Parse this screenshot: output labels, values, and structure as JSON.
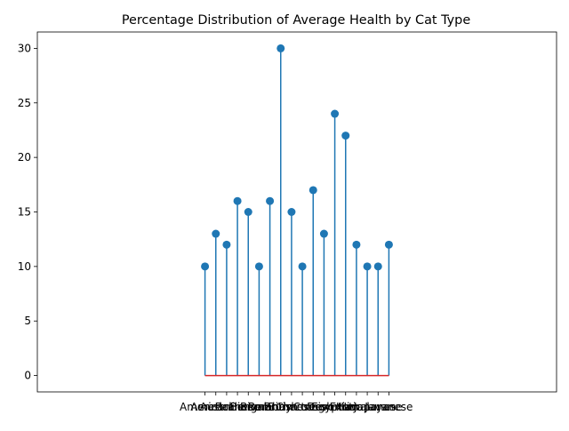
{
  "chart_data": {
    "type": "stem",
    "title": "Percentage Distribution of Average Health by Cat Type",
    "xlabel": "",
    "ylabel": "",
    "categories": [
      "American",
      "American",
      "Australian",
      "Balinese",
      "Bengal",
      "Birman",
      "Bombay",
      "British",
      "Burmese",
      "Chartreux",
      "Cornish",
      "Devon",
      "Egyptian",
      "Exotic",
      "Havana",
      "Himalayan",
      "Japanese",
      "Javanese"
    ],
    "values": [
      10,
      13,
      12,
      16,
      15,
      10,
      16,
      30,
      15,
      10,
      17,
      13,
      24,
      22,
      12,
      10,
      10,
      12
    ],
    "ylim": [
      -1.5,
      31.5
    ],
    "yticks": [
      0,
      5,
      10,
      15,
      20,
      25,
      30
    ],
    "xlim": [
      -15.5,
      32.5
    ],
    "grid": false,
    "colors": {
      "stem": "#1f77b4",
      "baseline": "#d62728",
      "axis": "#000000"
    }
  }
}
